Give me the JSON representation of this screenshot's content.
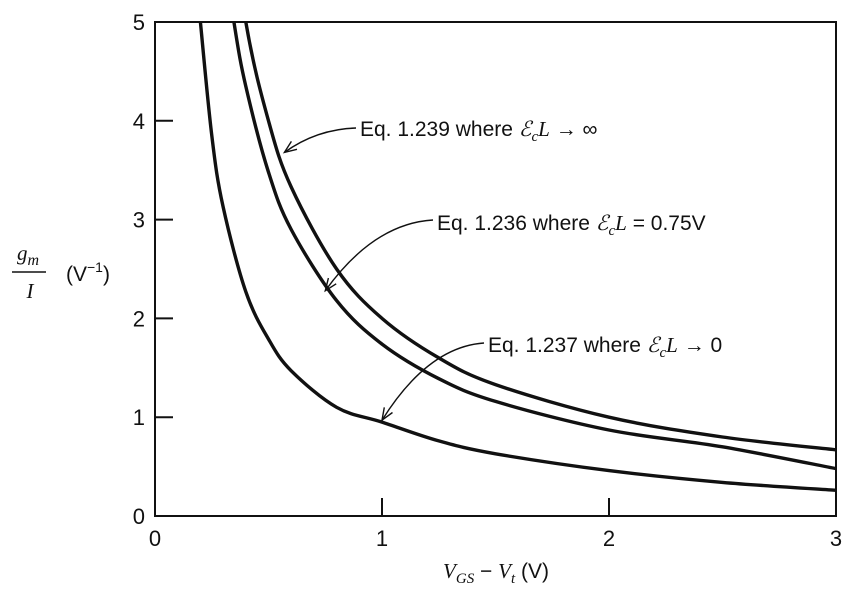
{
  "chart_data": {
    "type": "line",
    "xlim": [
      0,
      3
    ],
    "ylim": [
      0,
      5
    ],
    "x_ticks": [
      "0",
      "1",
      "2",
      "3"
    ],
    "y_ticks": [
      "0",
      "1",
      "2",
      "3",
      "4",
      "5"
    ],
    "xlabel": {
      "var": "V",
      "sub1": "GS",
      "op": " − ",
      "var2": "V",
      "sub2": "t",
      "unit": " (V)"
    },
    "ylabel": {
      "num": "g",
      "num_sub": "m",
      "den": "I",
      "unit": "(V",
      "unit_sup": "−1",
      "unit_close": ")"
    },
    "grid": false,
    "legend": "none",
    "series": [
      {
        "x": [
          0.3,
          0.4,
          0.5,
          0.6,
          0.8,
          1.0,
          1.25,
          1.5,
          2.0,
          2.5,
          3.0
        ],
        "y": [
          6.67,
          5.0,
          4.0,
          3.33,
          2.5,
          2.0,
          1.6,
          1.33,
          1.0,
          0.8,
          0.67
        ]
      },
      {
        "x": [
          0.3,
          0.35,
          0.4,
          0.5,
          0.6,
          0.8,
          1.0,
          1.25,
          1.5,
          2.0,
          2.5,
          3.0
        ],
        "y": [
          5.8,
          4.97,
          4.35,
          3.48,
          2.9,
          2.18,
          1.74,
          1.39,
          1.16,
          0.87,
          0.7,
          0.48
        ]
      },
      {
        "x": [
          0.2,
          0.25,
          0.3,
          0.4,
          0.5,
          0.6,
          0.8,
          1.0,
          1.25,
          1.5,
          2.0,
          2.5,
          3.0
        ],
        "y": [
          5.0,
          3.85,
          3.13,
          2.27,
          1.79,
          1.47,
          1.1,
          0.95,
          0.76,
          0.63,
          0.46,
          0.34,
          0.26
        ]
      }
    ],
    "annotations": [
      {
        "prefix": "Eq. 1.239 where ",
        "sym": "ℰ",
        "sub": "c",
        "var": "L",
        "rel": " → ∞",
        "arrow_to": [
          0.57,
          3.68
        ]
      },
      {
        "prefix": "Eq. 1.236 where ",
        "sym": "ℰ",
        "sub": "c",
        "var": "L",
        "rel": " = 0.75V",
        "arrow_to": [
          0.75,
          2.28
        ]
      },
      {
        "prefix": "Eq. 1.237 where ",
        "sym": "ℰ",
        "sub": "c",
        "var": "L",
        "rel": " → 0",
        "arrow_to": [
          1.0,
          0.97
        ]
      }
    ]
  }
}
